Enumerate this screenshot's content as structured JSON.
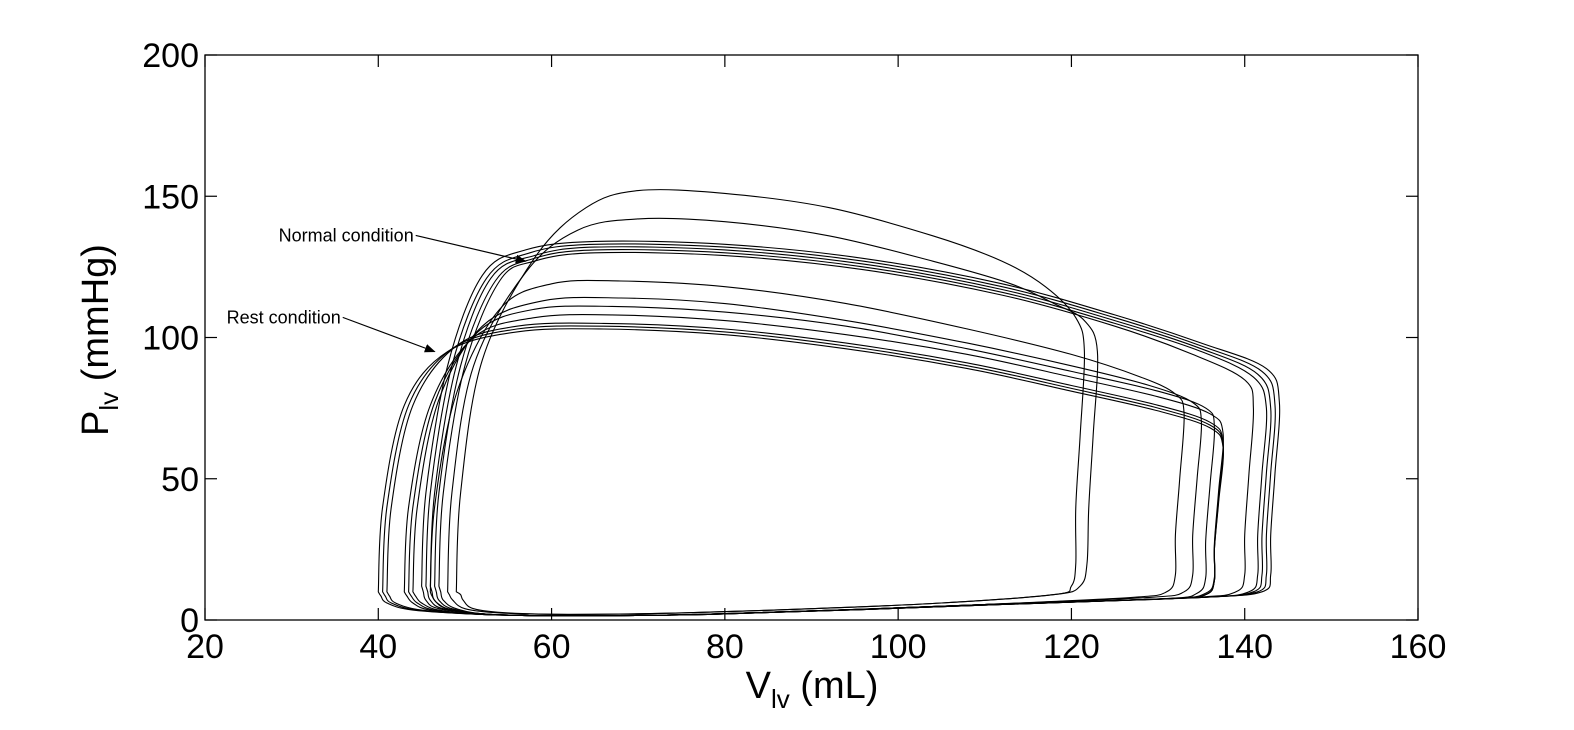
{
  "chart_data": {
    "type": "line",
    "title": "",
    "xlabel": {
      "main": "V",
      "sub": "lv",
      "unit": " (mL)"
    },
    "ylabel": {
      "main": "P",
      "sub": "lv",
      "unit": " (mmHg)"
    },
    "xlim": [
      20,
      160
    ],
    "ylim": [
      0,
      200
    ],
    "xticks": [
      "20",
      "40",
      "60",
      "80",
      "100",
      "120",
      "140",
      "160"
    ],
    "yticks": [
      "0",
      "50",
      "100",
      "150",
      "200"
    ],
    "grid": false,
    "line_color": "#000000",
    "annotations": [
      {
        "text": "Normal condition",
        "text_at": [
          28.5,
          134
        ],
        "arrow_to": [
          57,
          127
        ]
      },
      {
        "text": "Rest condition",
        "text_at": [
          22.5,
          105
        ],
        "arrow_to": [
          46.5,
          95
        ]
      }
    ],
    "series": [
      {
        "x": [
          49,
          49.5,
          52,
          58,
          64,
          70,
          80,
          92,
          104,
          112,
          117,
          120.5,
          121.5,
          121,
          120.5,
          120.5,
          120,
          118,
          105,
          90,
          75,
          63,
          55,
          51,
          49.8,
          49.5,
          49
        ],
        "y": [
          10,
          45,
          92,
          128,
          146,
          152,
          151,
          146,
          136,
          127,
          118,
          107,
          95,
          65,
          40,
          20,
          12,
          9,
          6,
          4,
          2.5,
          2,
          2.5,
          4,
          7,
          9,
          10
        ]
      },
      {
        "x": [
          48,
          48.5,
          51,
          57,
          63,
          70,
          80,
          92,
          104,
          113,
          118,
          121.5,
          123,
          122.5,
          122,
          121.8,
          121,
          118,
          105,
          90,
          75,
          62,
          54,
          50,
          48.6,
          48.2,
          48
        ],
        "y": [
          10,
          45,
          90,
          123,
          138,
          142,
          141,
          136,
          127,
          119,
          112,
          106,
          95,
          65,
          40,
          20,
          12,
          9,
          6,
          4,
          2.5,
          2,
          2.5,
          4,
          7,
          9,
          10
        ]
      },
      {
        "x": [
          46,
          46.5,
          49,
          54,
          60,
          68,
          80,
          94,
          108,
          120,
          128,
          132,
          133,
          132.5,
          132,
          132,
          131,
          127,
          110,
          93,
          77,
          62,
          53,
          48.5,
          46.8,
          46.2,
          46
        ],
        "y": [
          10,
          40,
          80,
          110,
          119,
          120,
          118,
          112,
          103,
          94,
          86,
          80,
          73,
          50,
          30,
          16,
          10,
          8,
          5.5,
          3.5,
          2,
          1.5,
          2,
          3.5,
          6,
          8.5,
          10
        ]
      },
      {
        "x": [
          44,
          44.5,
          47,
          52,
          59,
          68,
          80,
          94,
          108,
          120,
          129,
          134,
          135,
          134.5,
          134,
          134,
          133,
          129,
          110,
          93,
          77,
          62,
          52,
          47,
          45,
          44.3,
          44
        ],
        "y": [
          10,
          40,
          78,
          104,
          113,
          114,
          112,
          106,
          98,
          90,
          83,
          77,
          70,
          50,
          30,
          16,
          10,
          8,
          5.5,
          3.5,
          2,
          1.5,
          2,
          3.5,
          6,
          8.5,
          10
        ]
      },
      {
        "x": [
          43.5,
          44,
          46.5,
          51.5,
          58,
          67,
          80,
          94,
          108,
          120,
          130,
          135.5,
          136.5,
          136,
          135.5,
          135.5,
          134.5,
          130.5,
          110,
          93,
          77,
          62,
          52,
          46.5,
          44.5,
          43.8,
          43.5
        ],
        "y": [
          10,
          40,
          77,
          102,
          110,
          111,
          109,
          104,
          96,
          88,
          81,
          75,
          68,
          48,
          28,
          15,
          9.5,
          7.5,
          5.5,
          3.5,
          2,
          1.5,
          2,
          3.5,
          6,
          8.5,
          10
        ]
      },
      {
        "x": [
          43,
          43.5,
          46,
          51,
          58,
          67,
          80,
          94,
          108,
          120,
          130,
          136,
          137.5,
          137,
          136.5,
          136.5,
          135.5,
          131,
          110,
          93,
          77,
          62,
          52,
          46,
          44,
          43.3,
          43
        ],
        "y": [
          10,
          40,
          76,
          100,
          107,
          108,
          106,
          101,
          94,
          86,
          79,
          73,
          66,
          46,
          27,
          15,
          9.5,
          7.5,
          5.5,
          3.5,
          2,
          1.5,
          2,
          3.5,
          6,
          8.5,
          10
        ]
      },
      {
        "x": [
          41,
          41.5,
          44,
          49,
          56,
          66,
          80,
          94,
          108,
          120,
          130,
          136,
          137.5,
          137,
          136.5,
          136.5,
          135.5,
          131,
          110,
          93,
          77,
          62,
          52,
          45,
          42,
          41.3,
          41
        ],
        "y": [
          10,
          40,
          76,
          97,
          104,
          105,
          103,
          98,
          91,
          83,
          76,
          70,
          63,
          44,
          26,
          14,
          9,
          7.5,
          5.5,
          3.5,
          2,
          1.5,
          2,
          3.5,
          6,
          8.5,
          10
        ]
      },
      {
        "x": [
          40.5,
          41,
          43.5,
          48.5,
          56,
          66,
          80,
          94,
          108,
          120,
          130,
          136,
          137.5,
          137,
          136.5,
          136.5,
          135.5,
          131,
          110,
          93,
          77,
          62,
          52,
          44.5,
          41.5,
          40.8,
          40.5
        ],
        "y": [
          10,
          40,
          76,
          96,
          103,
          104,
          102,
          97,
          90,
          82,
          75,
          69,
          62,
          43,
          25,
          14,
          9,
          7.5,
          5.5,
          3.5,
          2,
          1.5,
          2,
          3.5,
          6,
          8.5,
          10
        ]
      },
      {
        "x": [
          40,
          40.5,
          43,
          48,
          56,
          66,
          80,
          94,
          108,
          120,
          130,
          136,
          137.5,
          137,
          136.5,
          136.5,
          135.5,
          131,
          110,
          93,
          77,
          62,
          52,
          44,
          41,
          40.3,
          40
        ],
        "y": [
          10,
          40,
          76,
          95,
          102,
          103,
          101,
          96,
          89,
          81,
          74,
          68,
          61,
          42,
          25,
          14,
          9,
          7.5,
          5.5,
          3.5,
          2,
          1.5,
          2,
          3.5,
          6,
          8.5,
          10
        ]
      },
      {
        "x": [
          47,
          47.5,
          50,
          54,
          58,
          65,
          80,
          96,
          112,
          125,
          134,
          140,
          141,
          140.5,
          140,
          140,
          139,
          134,
          112,
          94,
          78,
          63,
          53,
          49,
          47.5,
          47.2,
          47
        ],
        "y": [
          12,
          45,
          90,
          120,
          127,
          130,
          129,
          124,
          115,
          104,
          94,
          85,
          75,
          52,
          30,
          16,
          10,
          8,
          5.5,
          3.5,
          2,
          1.5,
          2,
          4,
          7,
          10,
          12
        ]
      },
      {
        "x": [
          46.5,
          47,
          49.5,
          53.5,
          58,
          65,
          80,
          96,
          112,
          125,
          135,
          141,
          142.5,
          142,
          141.5,
          141.5,
          140.5,
          135,
          112,
          94,
          78,
          63,
          53,
          48.5,
          47,
          46.7,
          46.5
        ],
        "y": [
          12,
          45,
          90,
          120,
          128,
          131,
          130,
          125,
          116,
          105,
          95,
          86,
          75,
          52,
          30,
          16,
          10,
          8,
          5.5,
          3.5,
          2,
          1.5,
          2,
          4,
          7,
          10,
          12
        ]
      },
      {
        "x": [
          46,
          46.5,
          49,
          53,
          58,
          65,
          80,
          96,
          112,
          125,
          135,
          141.5,
          143,
          142.5,
          142,
          142,
          141,
          135,
          112,
          94,
          78,
          63,
          53,
          48,
          46.5,
          46.2,
          46
        ],
        "y": [
          12,
          45,
          90,
          121,
          129,
          132,
          131,
          126,
          117,
          106,
          96,
          87,
          75,
          52,
          30,
          16,
          10,
          8,
          5.5,
          3.5,
          2,
          1.5,
          2,
          4,
          7,
          10,
          12
        ]
      },
      {
        "x": [
          45.5,
          46,
          48.5,
          52.5,
          57.5,
          65,
          80,
          96,
          112,
          125,
          135,
          142,
          143.5,
          143,
          142.5,
          142.5,
          141.5,
          135,
          112,
          94,
          78,
          63,
          53,
          47.5,
          46,
          45.7,
          45.5
        ],
        "y": [
          12,
          45,
          90,
          121,
          130,
          133,
          132,
          127,
          118,
          107,
          97,
          88,
          76,
          52,
          30,
          16,
          10,
          8,
          5.5,
          3.5,
          2,
          1.5,
          2,
          4,
          7,
          10,
          12
        ]
      },
      {
        "x": [
          45,
          45.5,
          48,
          52,
          57,
          65,
          80,
          96,
          112,
          125,
          135,
          142.5,
          144,
          143.5,
          143,
          143,
          142,
          135,
          112,
          94,
          78,
          63,
          53,
          47,
          45.5,
          45.2,
          45
        ],
        "y": [
          12,
          45,
          90,
          122,
          131,
          134,
          133,
          128,
          119,
          108,
          98,
          89,
          77,
          52,
          30,
          16,
          10,
          8,
          5.5,
          3.5,
          2,
          1.5,
          2,
          4,
          7,
          10,
          12
        ]
      }
    ]
  }
}
